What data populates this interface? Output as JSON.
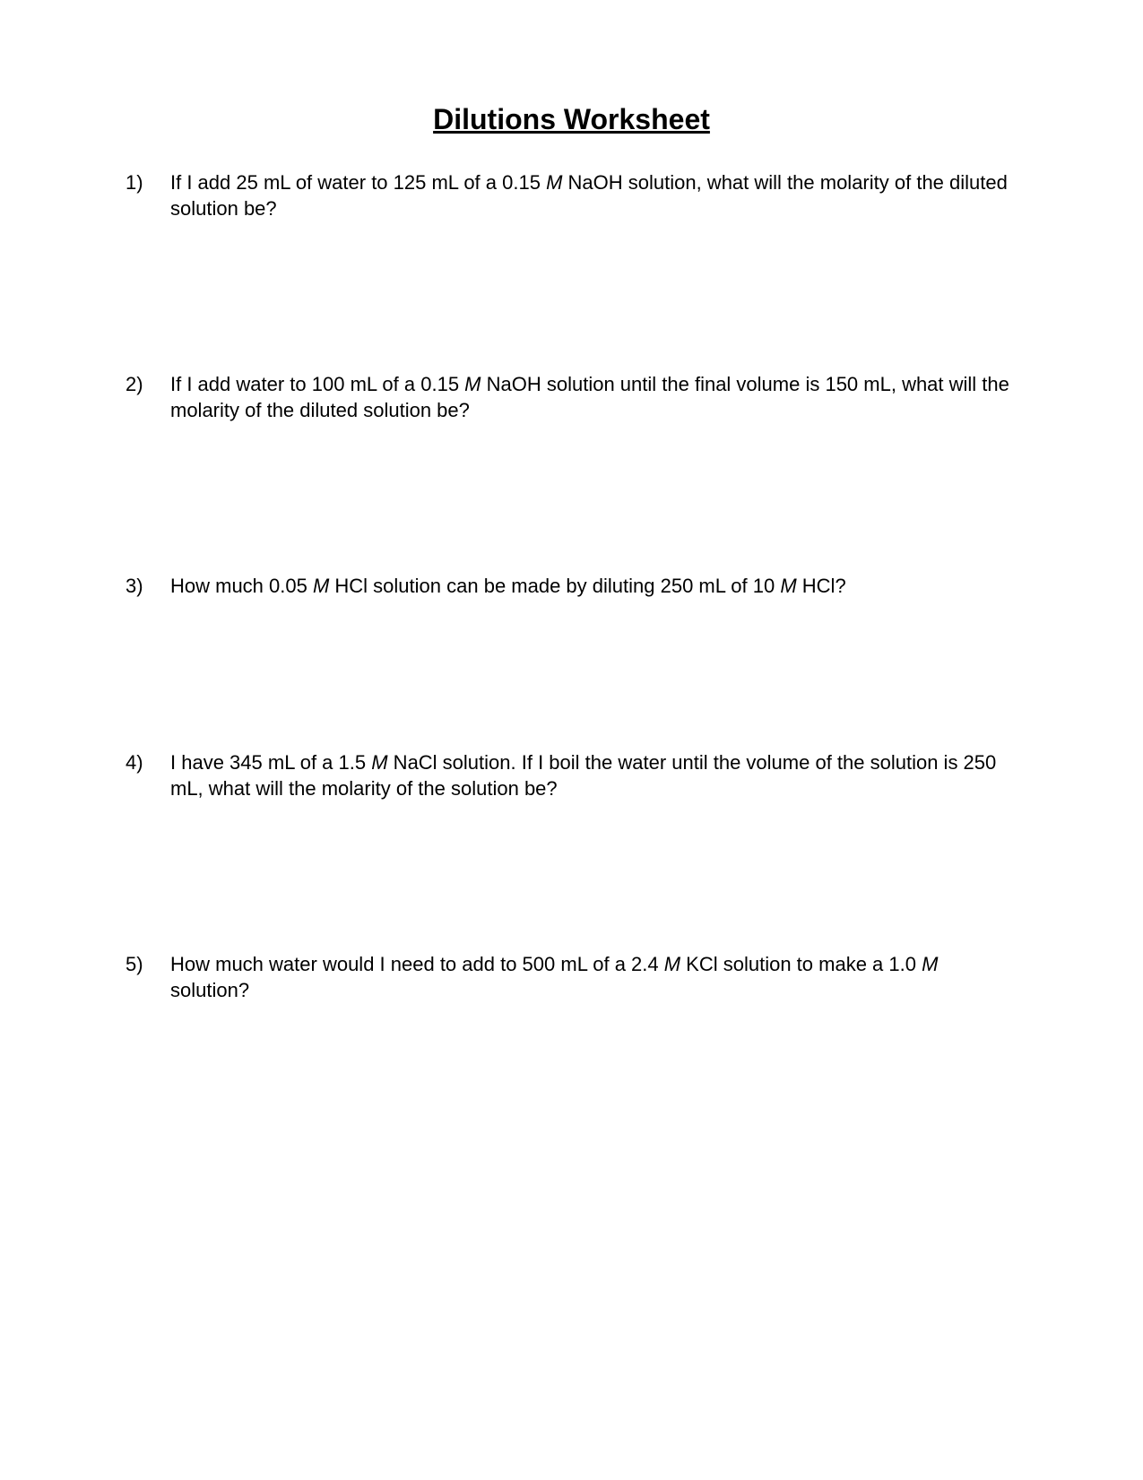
{
  "title": "Dilutions Worksheet",
  "questions": [
    {
      "number": "1)",
      "pre1": "If I add 25 mL of water to 125 mL of a 0.15 ",
      "m1": "M",
      "post1": " NaOH solution, what will the molarity of the diluted solution be?"
    },
    {
      "number": "2)",
      "pre1": "If I add water to 100 mL of a 0.15 ",
      "m1": "M",
      "post1": " NaOH solution until the final volume is 150 mL, what will the molarity of the diluted solution be?"
    },
    {
      "number": "3)",
      "pre1": "How much 0.05 ",
      "m1": "M",
      "mid1": " HCl solution can be made by diluting 250 mL of 10 ",
      "m2": "M",
      "post1": " HCl?"
    },
    {
      "number": "4)",
      "pre1": "I have 345 mL of a 1.5 ",
      "m1": "M",
      "post1": " NaCl solution.  If I boil the water until the volume of the solution is 250 mL, what will the molarity of the solution be?"
    },
    {
      "number": "5)",
      "pre1": "How much water would I need to add to 500 mL of a 2.4 ",
      "m1": "M",
      "mid1": " KCl solution to make a 1.0 ",
      "m2": "M",
      "post1": " solution?"
    }
  ]
}
